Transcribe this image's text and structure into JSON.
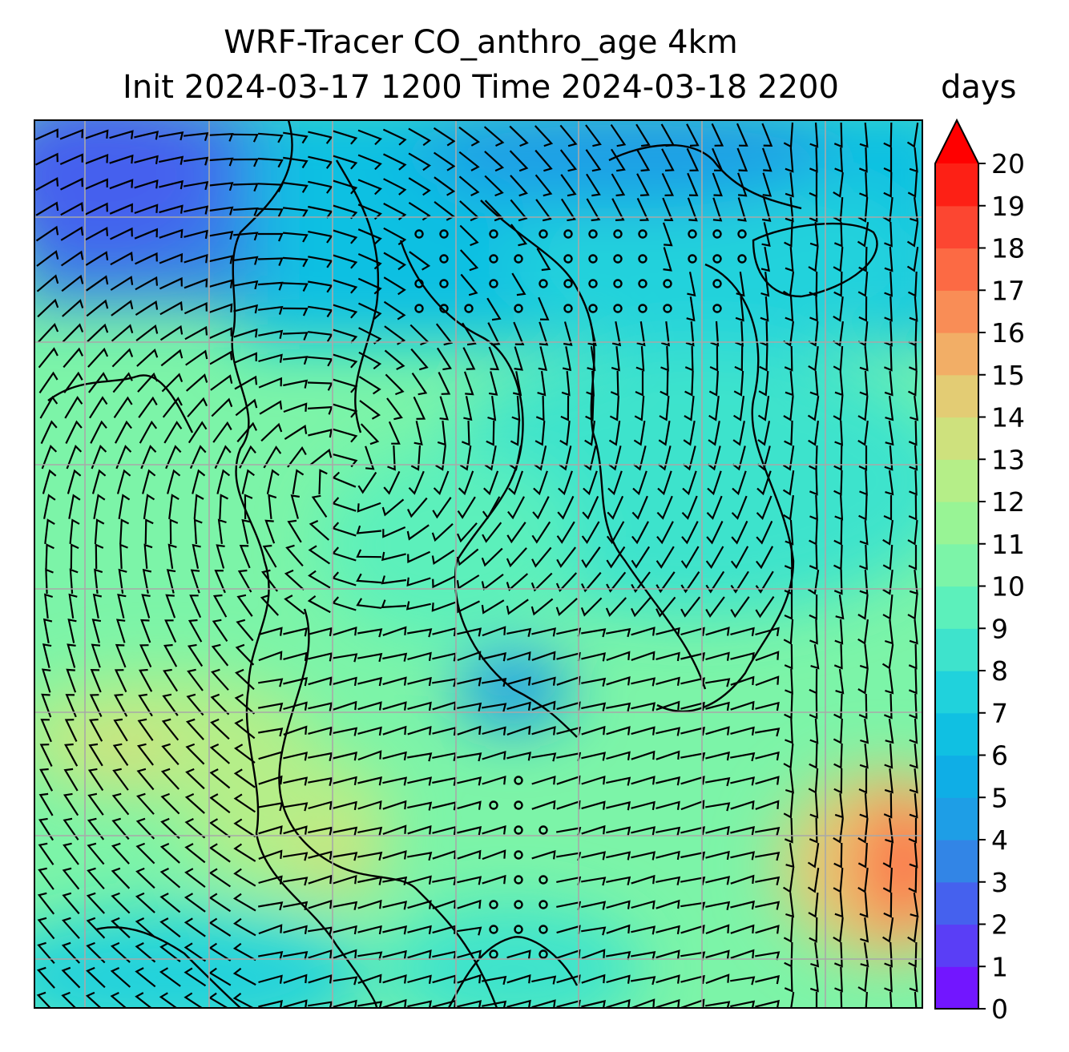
{
  "title": {
    "line1": "WRF-Tracer CO_anthro_age 4km",
    "line2": "Init 2024-03-17 1200 Time 2024-03-18 2200",
    "units": "days"
  },
  "chart_data": {
    "type": "heatmap",
    "title": "WRF-Tracer CO_anthro_age 4km",
    "subtitle": "Init 2024-03-17 1200 Time 2024-03-18 2200",
    "colorbar": {
      "label": "days",
      "min": 0,
      "max": 20,
      "extend": "max",
      "ticks": [
        "0",
        "1",
        "2",
        "3",
        "4",
        "5",
        "6",
        "7",
        "8",
        "9",
        "10",
        "11",
        "12",
        "13",
        "14",
        "15",
        "16",
        "17",
        "18",
        "19",
        "20"
      ],
      "colors": [
        "#7216ff",
        "#5a3ef6",
        "#4561ee",
        "#3285e6",
        "#1e9ee6",
        "#0faee6",
        "#10c0e2",
        "#20d2dc",
        "#3ee3cc",
        "#5cf0bb",
        "#7cf4a8",
        "#98f495",
        "#b5ee88",
        "#cee17d",
        "#e3cc74",
        "#f2ae66",
        "#f98d56",
        "#fc6a44",
        "#fc4631",
        "#fd2015"
      ],
      "over_color": "#ff0000"
    },
    "grid": true,
    "overlays": [
      "coastlines",
      "wind barbs"
    ]
  }
}
